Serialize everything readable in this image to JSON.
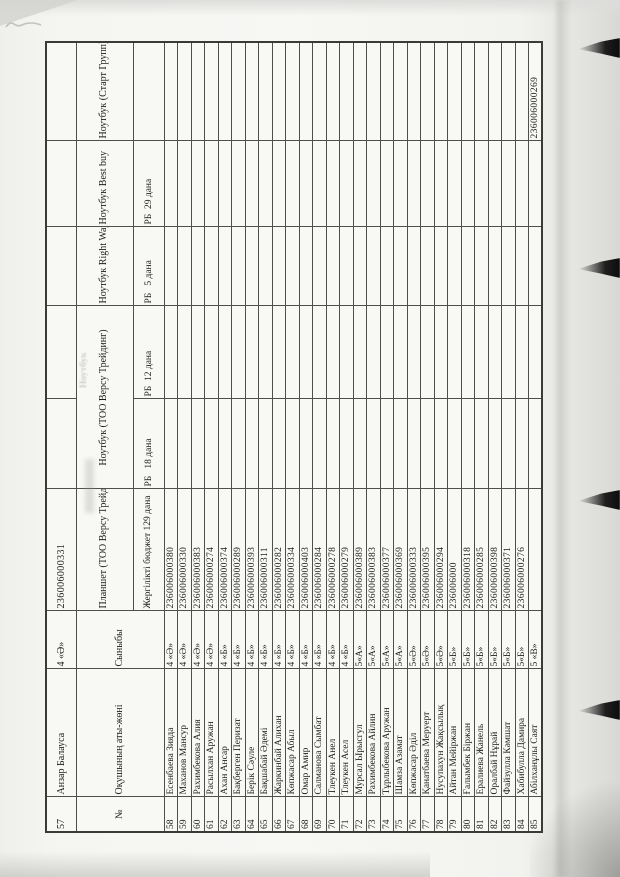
{
  "table": {
    "header": {
      "no": "№",
      "name": "Оқушының аты-жөні",
      "class": "Сыныбы",
      "tablet_main": "Планшет\n(ТОО Версу\nТрейдинг)",
      "tablet_sub": "Жергілікті\nбюджет 129 дана",
      "laptop_versu_main": "Ноутбук\n(ТОО Версу Трейдинг)",
      "laptop_versu_sub_18": "РБ   18 дана",
      "laptop_versu_sub_12": "РБ  12 дана",
      "laptop_rightway_main": "Ноутбук\nRight Way",
      "laptop_rightway_sub": "РБ   5 дана",
      "laptop_bestbuy_main": "Ноутбук\nBest buy",
      "laptop_bestbuy_sub": "РБ  29 дана",
      "laptop_start_main": "Ноутбук\n(Старт Групп)",
      "laptop_start_sub": ""
    },
    "carryover_row": {
      "no": "57",
      "name": "Анзар Балауса",
      "class": "4 «Ә»",
      "tablet": "236006000331",
      "laptop_versu_18": "",
      "laptop_versu_12": "",
      "laptop_rightway": "",
      "laptop_bestbuy": "",
      "laptop_start": ""
    },
    "rows": [
      {
        "no": "58",
        "name": "Есенбаева Зияда",
        "class": "4 «Ә»",
        "tablet": "236006000380",
        "laptop_start": ""
      },
      {
        "no": "59",
        "name": "Маханов Мансур",
        "class": "4 «Ә»",
        "tablet": "236006000330",
        "laptop_start": ""
      },
      {
        "no": "60",
        "name": "Рахимбекова Алия",
        "class": "4 «Ә»",
        "tablet": "236006000383",
        "laptop_start": ""
      },
      {
        "no": "61",
        "name": "Расылхан Аружан",
        "class": "4 «Ә»",
        "tablet": "236006000274",
        "laptop_start": ""
      },
      {
        "no": "62",
        "name": "Ахан Ансар",
        "class": "4 «Б»",
        "tablet": "236006000374",
        "laptop_start": ""
      },
      {
        "no": "63",
        "name": "Бақберген Перизат",
        "class": "4 «Б»",
        "tablet": "236006000289",
        "laptop_start": ""
      },
      {
        "no": "64",
        "name": "Берік Сәуле",
        "class": "4 «Б»",
        "tablet": "236006000393",
        "laptop_start": ""
      },
      {
        "no": "65",
        "name": "Бақшабай Әдемі",
        "class": "4 «Б»",
        "tablet": "236006000311",
        "laptop_start": ""
      },
      {
        "no": "66",
        "name": "Жаркинбай Алихан",
        "class": "4 «Б»",
        "tablet": "236006000282",
        "laptop_start": ""
      },
      {
        "no": "67",
        "name": "Көпжасар Абыл",
        "class": "4 «Б»",
        "tablet": "236006000334",
        "laptop_start": ""
      },
      {
        "no": "68",
        "name": "Омар Амир",
        "class": "4 «Б»",
        "tablet": "236006000403",
        "laptop_start": ""
      },
      {
        "no": "69",
        "name": "Салманова Сымбат",
        "class": "4 «Б»",
        "tablet": "236006000284",
        "laptop_start": ""
      },
      {
        "no": "70",
        "name": "Тлеукен Анел",
        "class": "4 «Б»",
        "tablet": "236006000278",
        "laptop_start": ""
      },
      {
        "no": "71",
        "name": "Тлеукен Асел",
        "class": "4 «Б»",
        "tablet": "236006000279",
        "laptop_start": ""
      },
      {
        "no": "72",
        "name": "Мурсал Ырысгул",
        "class": "5«А»",
        "tablet": "236006000389",
        "laptop_start": ""
      },
      {
        "no": "73",
        "name": "Рахимбекова Айлин",
        "class": "5«А»",
        "tablet": "236006000383",
        "laptop_start": ""
      },
      {
        "no": "74",
        "name": "Тұрлыбекова Аружан",
        "class": "5«А»",
        "tablet": "236006000377",
        "laptop_start": ""
      },
      {
        "no": "75",
        "name": "Шамза Азамат",
        "class": "5«А»",
        "tablet": "236006000369",
        "laptop_start": ""
      },
      {
        "no": "76",
        "name": "Көпжасар Әділ",
        "class": "5«Ә»",
        "tablet": "236006000333",
        "laptop_start": ""
      },
      {
        "no": "77",
        "name": "Қанатбаева Меруерт",
        "class": "5«Ә»",
        "tablet": "236006000395",
        "laptop_start": ""
      },
      {
        "no": "78",
        "name": "Нусупахун Жақсылық",
        "class": "5«Ә»",
        "tablet": "236006000294",
        "laptop_start": ""
      },
      {
        "no": "79",
        "name": "Айтан Мейіржан",
        "class": "5«Б»",
        "tablet": "236006000",
        "laptop_start": ""
      },
      {
        "no": "80",
        "name": "Ғалымбек Біржан",
        "class": "5«Б»",
        "tablet": "236006000318",
        "laptop_start": ""
      },
      {
        "no": "81",
        "name": "Ералиева Жанель",
        "class": "5«Б»",
        "tablet": "236006000285",
        "laptop_start": ""
      },
      {
        "no": "82",
        "name": "Оралбай Нұрай",
        "class": "5«Б»",
        "tablet": "236006000398",
        "laptop_start": ""
      },
      {
        "no": "83",
        "name": "Файзулла Кәмшат",
        "class": "5«Б»",
        "tablet": "236006000371",
        "laptop_start": ""
      },
      {
        "no": "84",
        "name": "Хабибулла Дамира",
        "class": "5«Б»",
        "tablet": "236006000276",
        "laptop_start": ""
      },
      {
        "no": "85",
        "name": "Абілханұлы Саят",
        "class": "5 «В»",
        "tablet": "",
        "laptop_start": "236006000269"
      }
    ]
  },
  "artifacts": {
    "ghost_text": "Ноутбук"
  }
}
